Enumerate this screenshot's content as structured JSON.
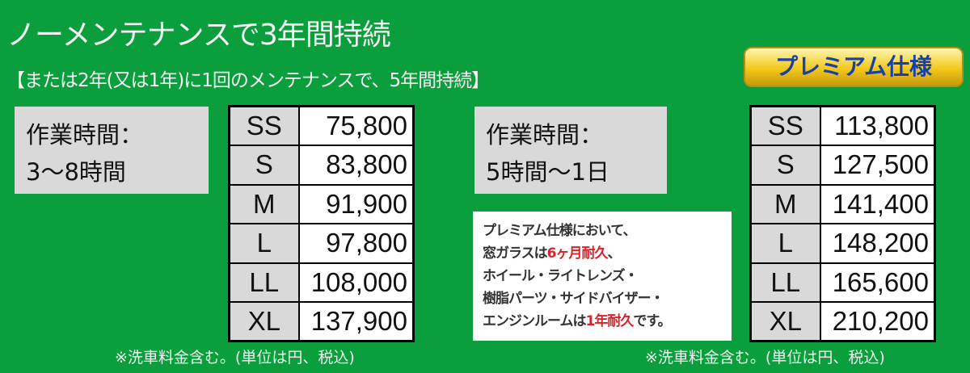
{
  "title": "ノーメンテナンスで3年間持続",
  "subtitle": "【または2年(又は1年)に1回のメンテナンスで、5年間持続】",
  "standard": {
    "work_time_label": "作業時間：",
    "work_time_value": "3〜8時間",
    "prices": [
      {
        "size": "SS",
        "price": "75,800"
      },
      {
        "size": "S",
        "price": "83,800"
      },
      {
        "size": "M",
        "price": "91,900"
      },
      {
        "size": "L",
        "price": "97,800"
      },
      {
        "size": "LL",
        "price": "108,000"
      },
      {
        "size": "XL",
        "price": "137,900"
      }
    ],
    "footnote": "※洗車料金含む。(単位は円、税込)"
  },
  "premium": {
    "badge": "プレミアム仕様",
    "work_time_label": "作業時間：",
    "work_time_value": "5時間〜1日",
    "note": {
      "l1": "プレミアム仕様において、",
      "l2a": "窓ガラスは",
      "l2b": "6ヶ月耐久",
      "l2c": "、",
      "l3": "ホイール・ライトレンズ・",
      "l4": "樹脂パーツ・サイドバイザー・",
      "l5a": "エンジンルームは",
      "l5b": "1年耐久",
      "l5c": "です。"
    },
    "prices": [
      {
        "size": "SS",
        "price": "113,800"
      },
      {
        "size": "S",
        "price": "127,500"
      },
      {
        "size": "M",
        "price": "141,400"
      },
      {
        "size": "L",
        "price": "148,200"
      },
      {
        "size": "LL",
        "price": "165,600"
      },
      {
        "size": "XL",
        "price": "210,200"
      }
    ],
    "footnote": "※洗車料金含む。(単位は円、税込)"
  },
  "colors": {
    "background": "#0a9e3c",
    "highlight": "#d8232a",
    "badge_text": "#1740a8"
  }
}
